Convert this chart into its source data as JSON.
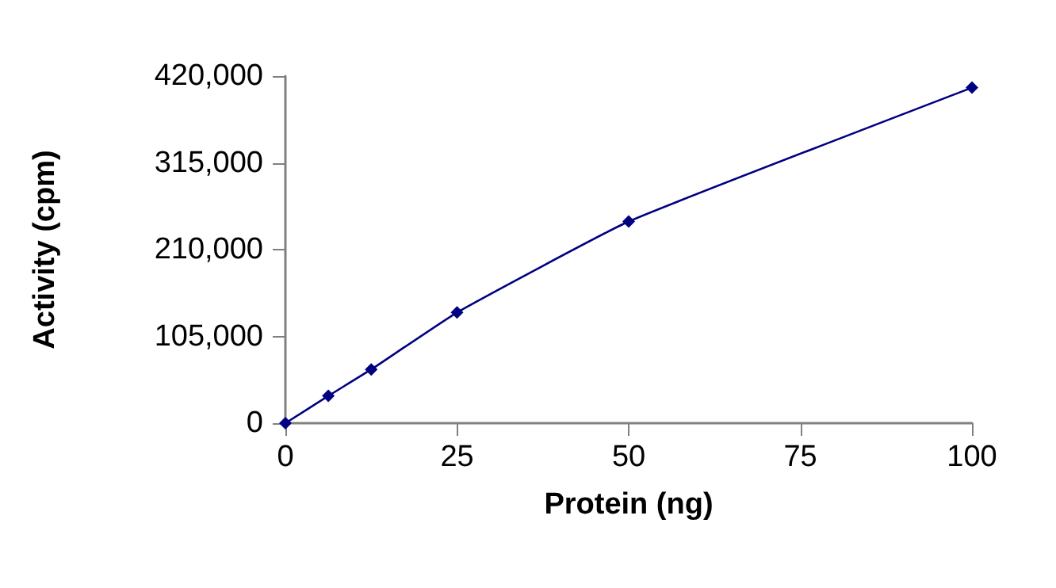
{
  "chart_data": {
    "type": "line",
    "xlabel": "Protein (ng)",
    "ylabel": "Activity (cpm)",
    "x": [
      0,
      6.25,
      12.5,
      25,
      50,
      100
    ],
    "series": [
      {
        "color": "#000080",
        "values": [
          0,
          33000,
          65000,
          134000,
          244000,
          406000
        ]
      }
    ],
    "xlim": [
      0,
      100
    ],
    "xticks": [
      0,
      25,
      50,
      75,
      100
    ],
    "ylim": [
      0,
      420000
    ],
    "yticks": [
      0,
      {
        "value": 105000,
        "label": "105,000"
      },
      {
        "value": 210000,
        "label": "210,000"
      },
      {
        "value": 315000,
        "label": "315,000"
      },
      {
        "value": 420000,
        "label": "420,000"
      }
    ],
    "grid": false,
    "marker": "diamond",
    "line_style": "solid"
  }
}
